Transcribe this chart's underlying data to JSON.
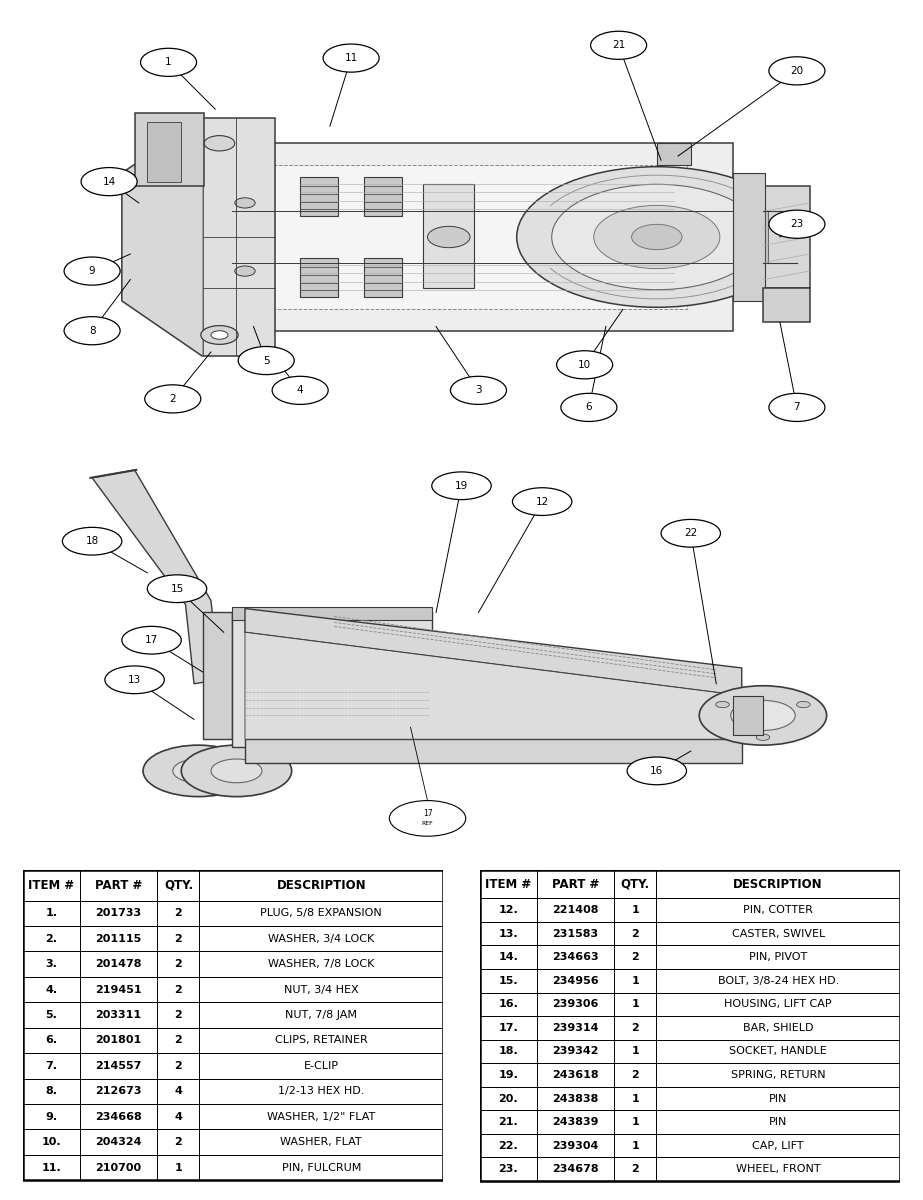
{
  "left_table": {
    "headers": [
      "ITEM #",
      "PART #",
      "QTY.",
      "DESCRIPTION"
    ],
    "rows": [
      [
        "1.",
        "201733",
        "2",
        "PLUG, 5/8 EXPANSION"
      ],
      [
        "2.",
        "201115",
        "2",
        "WASHER, 3/4 LOCK"
      ],
      [
        "3.",
        "201478",
        "2",
        "WASHER, 7/8 LOCK"
      ],
      [
        "4.",
        "219451",
        "2",
        "NUT, 3/4 HEX"
      ],
      [
        "5.",
        "203311",
        "2",
        "NUT, 7/8 JAM"
      ],
      [
        "6.",
        "201801",
        "2",
        "CLIPS, RETAINER"
      ],
      [
        "7.",
        "214557",
        "2",
        "E-CLIP"
      ],
      [
        "8.",
        "212673",
        "4",
        "1/2-13 HEX HD."
      ],
      [
        "9.",
        "234668",
        "4",
        "WASHER, 1/2\" FLAT"
      ],
      [
        "10.",
        "204324",
        "2",
        "WASHER, FLAT"
      ],
      [
        "11.",
        "210700",
        "1",
        "PIN, FULCRUM"
      ]
    ]
  },
  "right_table": {
    "headers": [
      "ITEM #",
      "PART #",
      "QTY.",
      "DESCRIPTION"
    ],
    "rows": [
      [
        "12.",
        "221408",
        "1",
        "PIN, COTTER"
      ],
      [
        "13.",
        "231583",
        "2",
        "CASTER, SWIVEL"
      ],
      [
        "14.",
        "234663",
        "2",
        "PIN, PIVOT"
      ],
      [
        "15.",
        "234956",
        "1",
        "BOLT, 3/8-24 HEX HD."
      ],
      [
        "16.",
        "239306",
        "1",
        "HOUSING, LIFT CAP"
      ],
      [
        "17.",
        "239314",
        "2",
        "BAR, SHIELD"
      ],
      [
        "18.",
        "239342",
        "1",
        "SOCKET, HANDLE"
      ],
      [
        "19.",
        "243618",
        "2",
        "SPRING, RETURN"
      ],
      [
        "20.",
        "243838",
        "1",
        "PIN"
      ],
      [
        "21.",
        "243839",
        "1",
        "PIN"
      ],
      [
        "22.",
        "239304",
        "1",
        "CAP, LIFT"
      ],
      [
        "23.",
        "234678",
        "2",
        "WHEEL, FRONT"
      ]
    ]
  },
  "background_color": "#ffffff",
  "font_size": 8.0,
  "header_font_size": 8.5,
  "col_props": [
    0.135,
    0.175,
    0.1,
    0.59
  ]
}
